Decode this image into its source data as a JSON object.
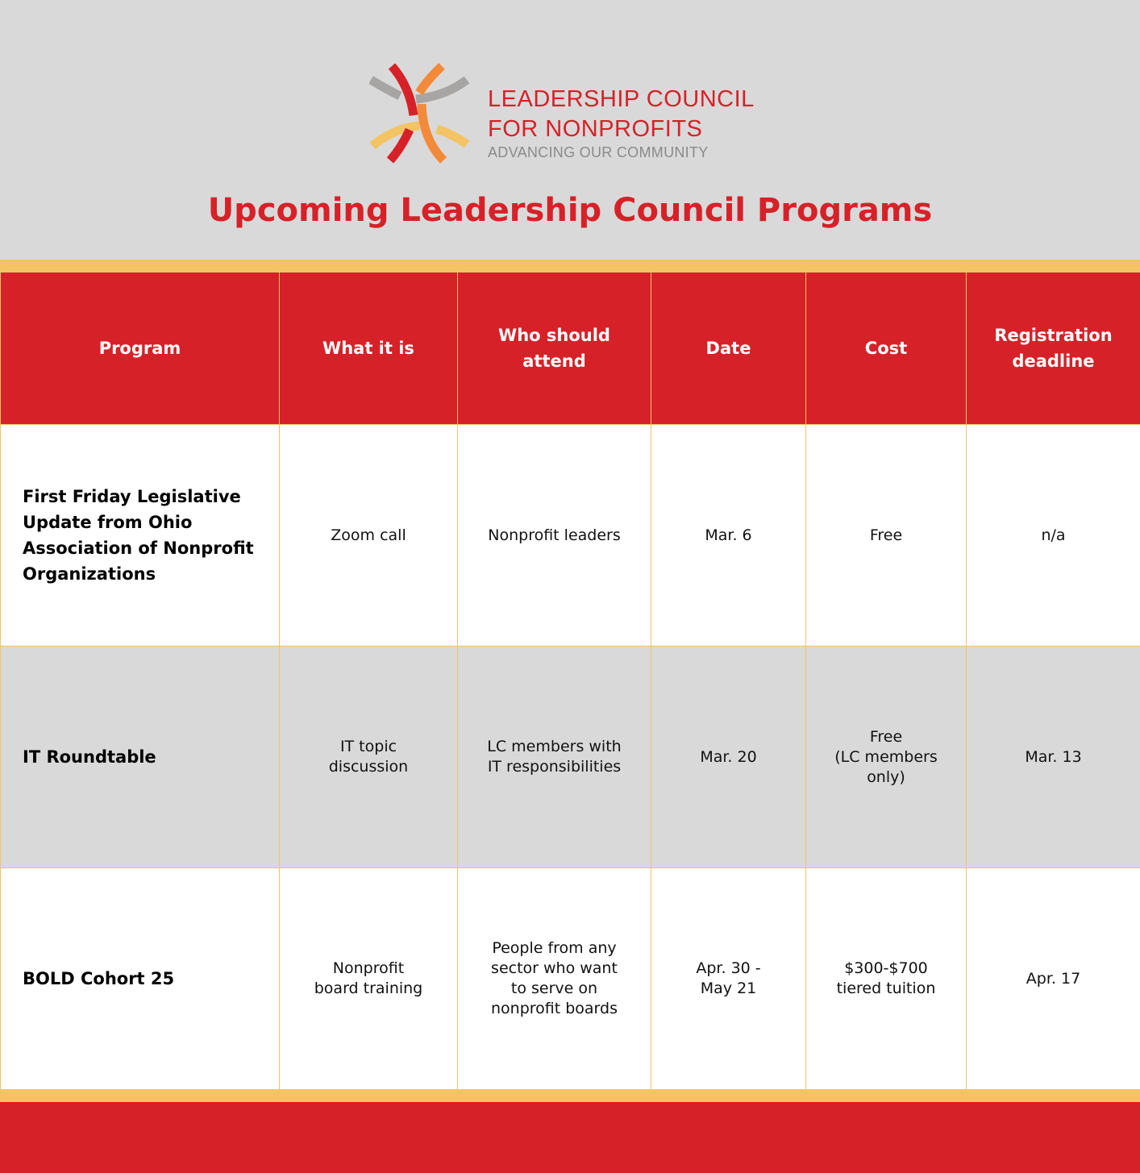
{
  "brand": {
    "line1": "LEADERSHIP COUNCIL",
    "line2": "FOR NONPROFITS",
    "tagline": "ADVANCING OUR COMMUNITY",
    "colors": {
      "red": "#d72128",
      "gray": "#a7a5a4",
      "orange": "#f28a3a",
      "yellow": "#f2c463"
    }
  },
  "title": "Upcoming Leadership Council Programs",
  "table": {
    "headers": [
      "Program",
      "What it is",
      "Who should\nattend",
      "Date",
      "Cost",
      "Registration\ndeadline"
    ],
    "rows": [
      [
        "First Friday Legislative Update from Ohio Association of Nonprofit Organizations",
        "Zoom call",
        "Nonprofit leaders",
        "Mar. 6",
        "Free",
        "n/a"
      ],
      [
        "IT Roundtable",
        "IT topic\ndiscussion",
        "LC members with\nIT responsibilities",
        "Mar. 20",
        "Free\n(LC members\nonly)",
        "Mar. 13"
      ],
      [
        "BOLD Cohort 25",
        "Nonprofit\nboard training",
        "People from any\nsector who want\nto serve on\nnonprofit boards",
        "Apr. 30 -\nMay 21",
        "$300-$700\ntiered tuition",
        "Apr. 17"
      ]
    ]
  }
}
